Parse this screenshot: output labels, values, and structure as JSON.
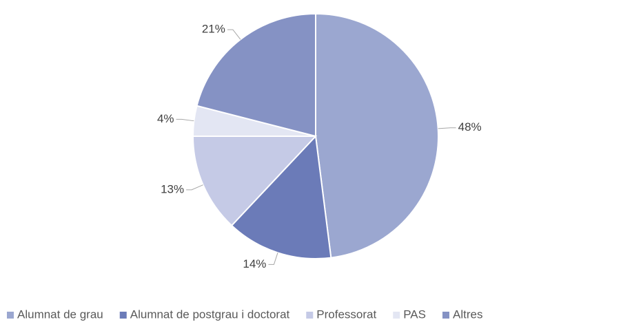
{
  "chart_data": {
    "type": "pie",
    "categories": [
      "Alumnat de grau",
      "Alumnat de postgrau i doctorat",
      "Professorat",
      "PAS",
      "Altres"
    ],
    "values": [
      48,
      14,
      13,
      4,
      21
    ],
    "value_labels": [
      "48%",
      "14%",
      "13%",
      "4%",
      "21%"
    ],
    "colors": [
      "#9ba7d0",
      "#6b7bb8",
      "#c5cae6",
      "#e3e6f3",
      "#8592c4"
    ],
    "legend": "bottom"
  }
}
